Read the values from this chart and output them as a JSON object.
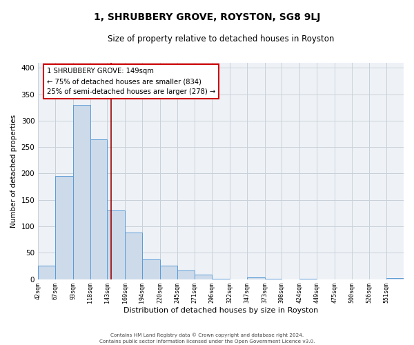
{
  "title": "1, SHRUBBERY GROVE, ROYSTON, SG8 9LJ",
  "subtitle": "Size of property relative to detached houses in Royston",
  "xlabel": "Distribution of detached houses by size in Royston",
  "ylabel": "Number of detached properties",
  "bar_edges": [
    42,
    67,
    93,
    118,
    143,
    169,
    194,
    220,
    245,
    271,
    296,
    322,
    347,
    373,
    398,
    424,
    449,
    475,
    500,
    526,
    551
  ],
  "bar_heights": [
    25,
    195,
    330,
    265,
    130,
    88,
    37,
    26,
    17,
    8,
    1,
    0,
    4,
    1,
    0,
    1,
    0,
    0,
    0,
    0,
    2
  ],
  "bar_color": "#ccdaea",
  "bar_edge_color": "#5b9bd5",
  "property_line_x": 149,
  "property_line_color": "#990000",
  "annotation_title": "1 SHRUBBERY GROVE: 149sqm",
  "annotation_line1": "← 75% of detached houses are smaller (834)",
  "annotation_line2": "25% of semi-detached houses are larger (278) →",
  "annotation_box_edge": "#cc0000",
  "ylim": [
    0,
    410
  ],
  "xlim": [
    42,
    576
  ],
  "tick_labels": [
    "42sqm",
    "67sqm",
    "93sqm",
    "118sqm",
    "143sqm",
    "169sqm",
    "194sqm",
    "220sqm",
    "245sqm",
    "271sqm",
    "296sqm",
    "322sqm",
    "347sqm",
    "373sqm",
    "398sqm",
    "424sqm",
    "449sqm",
    "475sqm",
    "500sqm",
    "526sqm",
    "551sqm"
  ],
  "tick_positions": [
    42,
    67,
    93,
    118,
    143,
    169,
    194,
    220,
    245,
    271,
    296,
    322,
    347,
    373,
    398,
    424,
    449,
    475,
    500,
    526,
    551
  ],
  "yticks": [
    0,
    50,
    100,
    150,
    200,
    250,
    300,
    350,
    400
  ],
  "footer_line1": "Contains HM Land Registry data © Crown copyright and database right 2024.",
  "footer_line2": "Contains public sector information licensed under the Open Government Licence v3.0.",
  "plot_bg_color": "#eef2f7",
  "grid_color": "#c8d0d8"
}
